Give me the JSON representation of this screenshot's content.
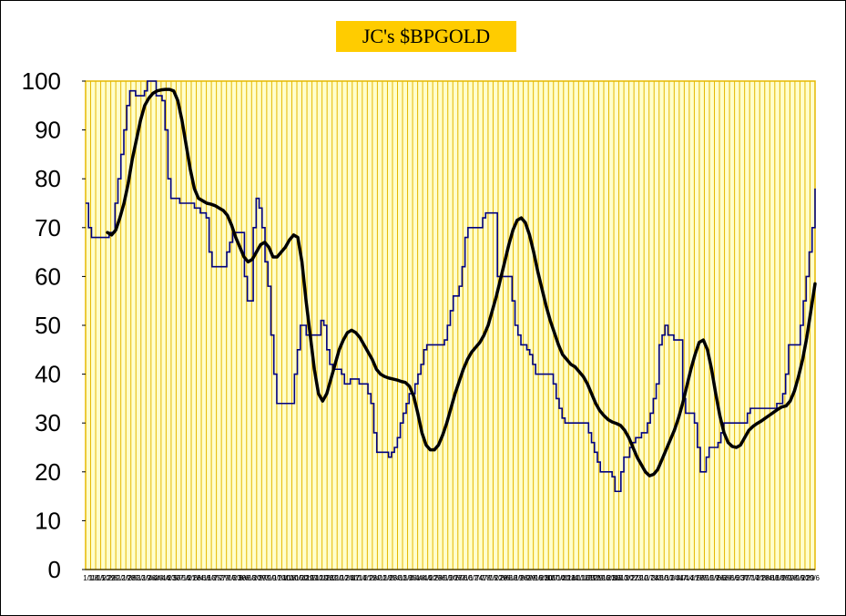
{
  "chart_data": {
    "type": "line",
    "title": "JC's $BPGOLD",
    "xlabel": "",
    "ylabel": "",
    "ylim": [
      0,
      100
    ],
    "yticks": [
      0,
      10,
      20,
      30,
      40,
      50,
      60,
      70,
      80,
      90,
      100
    ],
    "xtick_labels": [
      "1/1",
      "1/8",
      "1/15",
      "1/22",
      "1/29",
      "2/5",
      "2/12",
      "2/19",
      "2/26",
      "3/5",
      "3/12",
      "3/19",
      "3/26",
      "4/2",
      "4/9",
      "4/16",
      "4/23",
      "4/30",
      "5/7",
      "5/14",
      "5/21",
      "5/28",
      "6/4",
      "6/11",
      "6/18",
      "6/25",
      "7/2",
      "7/9",
      "7/16",
      "7/23",
      "7/30",
      "8/6",
      "8/13",
      "8/20",
      "8/27",
      "9/3",
      "9/10",
      "9/17",
      "9/24",
      "10/1",
      "10/8",
      "10/15",
      "10/22",
      "10/29",
      "11/5",
      "11/12",
      "11/19",
      "11/26",
      "12/3",
      "12/10",
      "12/17",
      "12/24",
      "12/31",
      "1/7",
      "1/14",
      "1/21",
      "1/28",
      "2/4",
      "2/11",
      "2/18",
      "2/25",
      "3/4",
      "3/11",
      "3/18",
      "3/25",
      "4/1",
      "4/8",
      "4/15",
      "4/22",
      "4/29",
      "5/6",
      "5/13",
      "5/20",
      "5/27",
      "6/3",
      "6/10",
      "6/17",
      "6/24",
      "7/1",
      "7/8",
      "7/15",
      "7/22",
      "7/29",
      "8/5",
      "8/12",
      "8/19",
      "8/26",
      "9/2",
      "9/9",
      "9/16",
      "9/23",
      "9/30",
      "10/7",
      "10/14",
      "10/21",
      "10/28",
      "11/4",
      "11/11",
      "11/18",
      "11/25",
      "12/2",
      "12/9",
      "12/16",
      "12/23",
      "12/30",
      "1/6",
      "1/13",
      "1/20",
      "1/27",
      "2/3",
      "2/10",
      "2/17",
      "2/24",
      "3/3",
      "3/10",
      "3/17",
      "3/24",
      "3/31",
      "4/7",
      "4/14",
      "4/21",
      "4/28",
      "5/5",
      "5/12",
      "5/19",
      "5/26",
      "6/2",
      "6/9",
      "6/16",
      "6/23",
      "6/30",
      "7/7",
      "7/14",
      "7/21",
      "7/28",
      "8/4",
      "8/11",
      "8/18",
      "8/25",
      "9/1",
      "9/8",
      "9/15",
      "9/22",
      "9/29",
      "10/6"
    ],
    "grid": true,
    "colors": {
      "plot_background": "#ffffcc",
      "gridlines": "#e6b800",
      "title_background": "#ffcc00",
      "series_raw": "#000080",
      "series_smooth": "#000000"
    },
    "series": [
      {
        "values": [
          75,
          70,
          68,
          68,
          68,
          68,
          68,
          68,
          69,
          69,
          75,
          80,
          85,
          90,
          95,
          98,
          98,
          97,
          97,
          97,
          98,
          100,
          100,
          100,
          97,
          97,
          96,
          90,
          80,
          76,
          76,
          76,
          75,
          75,
          75,
          75,
          75,
          74,
          74,
          73,
          73,
          72,
          65,
          62,
          62,
          62,
          62,
          62,
          65,
          67,
          69,
          69,
          69,
          69,
          60,
          55,
          55,
          70,
          76,
          74,
          70,
          63,
          58,
          48,
          40,
          34,
          34,
          34,
          34,
          34,
          34,
          40,
          45,
          50,
          50,
          48,
          48,
          48,
          48,
          48,
          51,
          50,
          45,
          42,
          41,
          41,
          41,
          40,
          38,
          38,
          39,
          39,
          39,
          38,
          38,
          38,
          36,
          34,
          28,
          24,
          24,
          24,
          24,
          23,
          24,
          25,
          27,
          30,
          32,
          34,
          36,
          36,
          38,
          40,
          42,
          45,
          46,
          46,
          46,
          46,
          46,
          46,
          47,
          50,
          53,
          56,
          56,
          58,
          62,
          68,
          70,
          70,
          70,
          70,
          70,
          72,
          73,
          73,
          73,
          73,
          60,
          60,
          60,
          60,
          60,
          55,
          50,
          48,
          46,
          46,
          45,
          44,
          42,
          40,
          40,
          40,
          40,
          40,
          40,
          38,
          35,
          33,
          31,
          30,
          30,
          30,
          30,
          30,
          30,
          30,
          30,
          28,
          26,
          24,
          22,
          20,
          20,
          20,
          20,
          19,
          16,
          16,
          20,
          23,
          23,
          25,
          26,
          27,
          27,
          28,
          28,
          30,
          32,
          35,
          38,
          46,
          48,
          50,
          48,
          48,
          47,
          47,
          47,
          35,
          32,
          32,
          32,
          30,
          25,
          20,
          20,
          23,
          25,
          25,
          25,
          26,
          28,
          30,
          30,
          30,
          30,
          30,
          30,
          30,
          30,
          32,
          33,
          33,
          33,
          33,
          33,
          33,
          33,
          33,
          33,
          34,
          34,
          36,
          40,
          46,
          46,
          46,
          46,
          50,
          55,
          60,
          65,
          70,
          78
        ]
      },
      {
        "values": [
          69,
          68.5,
          69.5,
          72,
          75,
          79,
          84,
          88,
          92,
          95,
          96.5,
          97.5,
          98,
          98.2,
          98.3,
          98.3,
          98,
          96,
          92,
          87,
          82,
          78,
          76,
          75.5,
          75,
          74.8,
          74.5,
          74,
          73.5,
          72.5,
          70.5,
          68,
          66,
          64,
          63,
          63.5,
          65,
          66.5,
          67,
          66,
          64,
          64,
          65,
          66,
          67.5,
          68.5,
          68,
          63,
          55,
          48,
          41,
          36,
          34.5,
          36,
          39,
          42,
          45,
          47,
          48.5,
          49,
          48.5,
          47.5,
          46,
          44.5,
          43,
          41,
          40,
          39.5,
          39.2,
          39,
          38.8,
          38.5,
          38.3,
          37.5,
          35.5,
          32,
          28,
          25.5,
          24.5,
          24.5,
          25.5,
          27.5,
          30,
          33,
          36,
          38.5,
          41,
          43,
          44.5,
          45.5,
          46.5,
          48,
          50,
          53,
          56,
          59.5,
          63,
          66.5,
          69.5,
          71.5,
          72,
          71,
          68.5,
          65,
          61,
          57.5,
          54,
          51,
          48.5,
          46,
          44,
          43,
          42,
          41.5,
          40.5,
          39.5,
          38,
          36,
          34,
          32.5,
          31.5,
          30.7,
          30.2,
          29.9,
          29.5,
          28.5,
          27,
          25,
          23,
          21.5,
          20,
          19.2,
          19.5,
          20.5,
          22.5,
          24.5,
          26.5,
          28.5,
          31,
          34,
          37.5,
          41,
          44,
          46.5,
          47,
          45,
          41,
          36,
          31.5,
          28,
          26,
          25.2,
          25,
          25.5,
          27,
          28.5,
          29.3,
          29.9,
          30.4,
          31,
          31.6,
          32.2,
          32.8,
          33.3,
          33.5,
          34.5,
          36.5,
          39.5,
          43,
          47.5,
          53,
          58.5
        ]
      }
    ]
  }
}
